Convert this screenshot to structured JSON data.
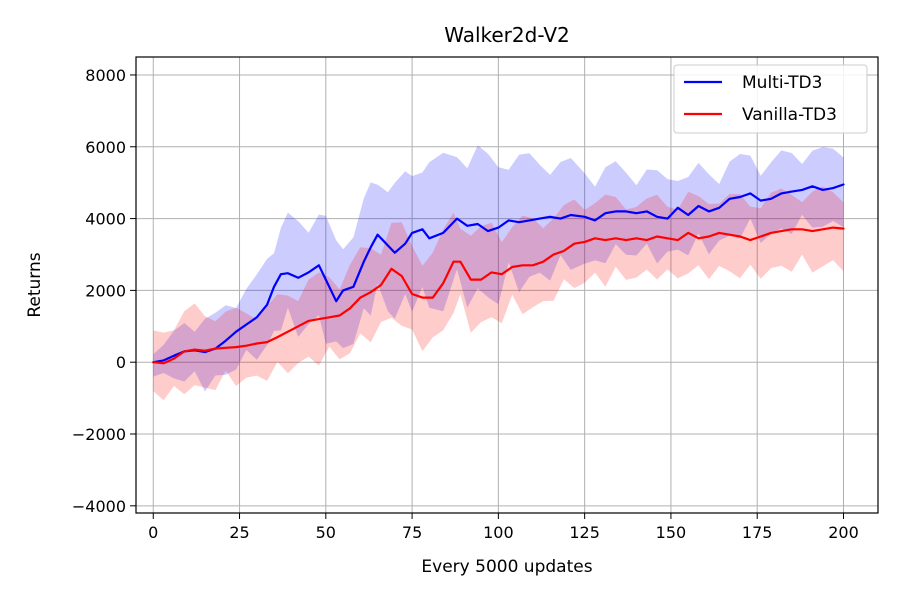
{
  "chart_data": {
    "type": "line",
    "title": "Walker2d-V2",
    "xlabel": "Every 5000 updates",
    "ylabel": "Returns",
    "xlim": [
      -5,
      210
    ],
    "ylim": [
      -4200,
      8500
    ],
    "xticks": [
      0,
      25,
      50,
      75,
      100,
      125,
      150,
      175,
      200
    ],
    "xtick_labels": [
      "0",
      "25",
      "50",
      "75",
      "100",
      "125",
      "150",
      "175",
      "200"
    ],
    "yticks": [
      -4000,
      -2000,
      0,
      2000,
      4000,
      6000,
      8000
    ],
    "ytick_labels": [
      "−4000",
      "−2000",
      "0",
      "2000",
      "4000",
      "6000",
      "8000"
    ],
    "grid": true,
    "legend_position": "top-right",
    "series": [
      {
        "name": "Multi-TD3",
        "color": "#0000ff",
        "band_color": "#0000ff",
        "x": [
          0,
          3,
          6,
          9,
          12,
          15,
          18,
          21,
          24,
          27,
          30,
          33,
          35,
          37,
          39,
          42,
          45,
          48,
          50,
          53,
          55,
          58,
          61,
          63,
          65,
          68,
          70,
          73,
          75,
          78,
          80,
          84,
          88,
          91,
          94,
          97,
          100,
          103,
          106,
          109,
          112,
          115,
          118,
          121,
          125,
          128,
          131,
          134,
          137,
          140,
          143,
          146,
          149,
          152,
          155,
          158,
          161,
          164,
          167,
          170,
          173,
          176,
          179,
          182,
          185,
          188,
          191,
          194,
          197,
          200
        ],
        "y": [
          0,
          50,
          180,
          300,
          330,
          280,
          380,
          600,
          850,
          1050,
          1250,
          1600,
          2100,
          2450,
          2480,
          2350,
          2500,
          2700,
          2300,
          1700,
          2000,
          2100,
          2800,
          3200,
          3550,
          3250,
          3050,
          3300,
          3600,
          3700,
          3450,
          3600,
          4000,
          3800,
          3850,
          3650,
          3750,
          3950,
          3900,
          3950,
          4000,
          4050,
          4000,
          4100,
          4050,
          3950,
          4150,
          4200,
          4200,
          4150,
          4200,
          4050,
          4000,
          4300,
          4100,
          4350,
          4200,
          4300,
          4550,
          4600,
          4700,
          4500,
          4550,
          4700,
          4750,
          4800,
          4900,
          4800,
          4850,
          4950
        ],
        "band_halfwidth": [
          400,
          500,
          700,
          900,
          900,
          1100,
          1000,
          1100,
          1100,
          1200,
          1200,
          1400,
          1500,
          1600,
          1700,
          1700,
          1700,
          1800,
          1800,
          1800,
          1700,
          1800,
          1800,
          1900,
          2000,
          2000,
          2000,
          2100,
          2200,
          2200,
          2200,
          2300,
          2300,
          2300,
          2300,
          2200,
          2200,
          2100,
          2000,
          1900,
          1900,
          1800,
          1700,
          1600,
          1500,
          1500,
          1400,
          1400,
          1300,
          1300,
          1300,
          1300,
          1300,
          1300,
          1200,
          1200,
          1200,
          1200,
          1200,
          1200,
          1200,
          1200,
          1200,
          1200,
          1200,
          1200,
          1200,
          1200,
          1200,
          1200
        ]
      },
      {
        "name": "Vanilla-TD3",
        "color": "#ff0000",
        "band_color": "#ff0000",
        "x": [
          0,
          3,
          6,
          9,
          12,
          15,
          18,
          21,
          24,
          27,
          30,
          33,
          36,
          39,
          42,
          45,
          48,
          51,
          54,
          57,
          60,
          63,
          66,
          69,
          72,
          75,
          78,
          81,
          84,
          87,
          89,
          92,
          95,
          98,
          101,
          104,
          107,
          110,
          113,
          116,
          119,
          122,
          125,
          128,
          131,
          134,
          137,
          140,
          143,
          146,
          149,
          152,
          155,
          158,
          161,
          164,
          167,
          170,
          173,
          176,
          179,
          182,
          185,
          188,
          191,
          194,
          197,
          200
        ],
        "y": [
          0,
          -30,
          100,
          300,
          350,
          320,
          380,
          400,
          420,
          460,
          520,
          560,
          700,
          850,
          1000,
          1150,
          1200,
          1250,
          1300,
          1500,
          1800,
          1950,
          2150,
          2600,
          2400,
          1900,
          1800,
          1800,
          2200,
          2800,
          2800,
          2300,
          2300,
          2500,
          2450,
          2650,
          2700,
          2700,
          2800,
          3000,
          3100,
          3300,
          3350,
          3450,
          3400,
          3450,
          3400,
          3450,
          3400,
          3500,
          3450,
          3400,
          3600,
          3450,
          3500,
          3600,
          3550,
          3500,
          3400,
          3500,
          3600,
          3650,
          3700,
          3700,
          3650,
          3700,
          3750,
          3720
        ],
        "band_halfwidth": [
          900,
          1100,
          1200,
          1200,
          1300,
          1200,
          1200,
          1100,
          1100,
          1100,
          1100,
          1100,
          1200,
          1200,
          1200,
          1300,
          1300,
          1300,
          1300,
          1400,
          1400,
          1400,
          1500,
          1500,
          1500,
          1500,
          1500,
          1500,
          1500,
          1500,
          1500,
          1500,
          1500,
          1500,
          1400,
          1400,
          1400,
          1400,
          1400,
          1300,
          1300,
          1300,
          1300,
          1300,
          1300,
          1200,
          1200,
          1200,
          1200,
          1200,
          1200,
          1200,
          1200,
          1200,
          1200,
          1200,
          1200,
          1200,
          1200,
          1200,
          1200,
          1200,
          1200,
          1200,
          1200,
          1200,
          1200,
          1200
        ]
      }
    ]
  }
}
